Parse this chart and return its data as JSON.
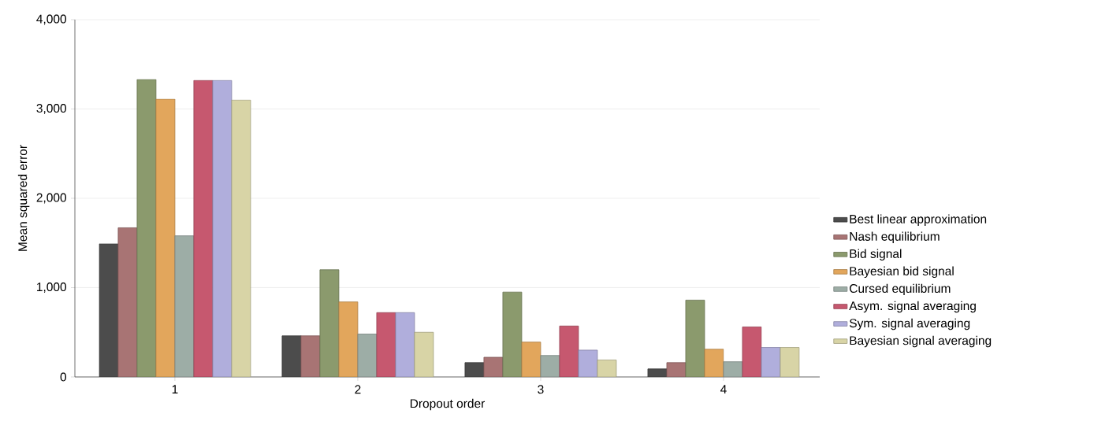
{
  "chart_data": {
    "type": "bar",
    "xlabel": "Dropout order",
    "ylabel": "Mean squared error",
    "categories": [
      "1",
      "2",
      "3",
      "4"
    ],
    "series": [
      {
        "name": "Best linear approximation",
        "color": "#4c4c4c",
        "values": [
          1490,
          460,
          160,
          90
        ]
      },
      {
        "name": "Nash equilibrium",
        "color": "#a87474",
        "values": [
          1670,
          460,
          220,
          160
        ]
      },
      {
        "name": "Bid signal",
        "color": "#8b9a6d",
        "values": [
          3330,
          1200,
          950,
          860
        ]
      },
      {
        "name": "Bayesian bid signal",
        "color": "#e2a65c",
        "values": [
          3110,
          840,
          390,
          310
        ]
      },
      {
        "name": "Cursed equilibrium",
        "color": "#9dada6",
        "values": [
          1580,
          480,
          240,
          170
        ]
      },
      {
        "name": "Asym. signal averaging",
        "color": "#c6586f",
        "values": [
          3320,
          720,
          570,
          560
        ]
      },
      {
        "name": "Sym. signal averaging",
        "color": "#b0aedc",
        "values": [
          3320,
          720,
          300,
          330
        ]
      },
      {
        "name": "Bayesian signal averaging",
        "color": "#d8d4a6",
        "values": [
          3100,
          500,
          190,
          330
        ]
      }
    ],
    "ylim": [
      0,
      4000
    ],
    "yticks": [
      {
        "value": 0,
        "label": "0"
      },
      {
        "value": 1000,
        "label": "1,000"
      },
      {
        "value": 2000,
        "label": "2,000"
      },
      {
        "value": 3000,
        "label": "3,000"
      },
      {
        "value": 4000,
        "label": "4,000"
      }
    ],
    "grid": "y",
    "legend": "right"
  }
}
